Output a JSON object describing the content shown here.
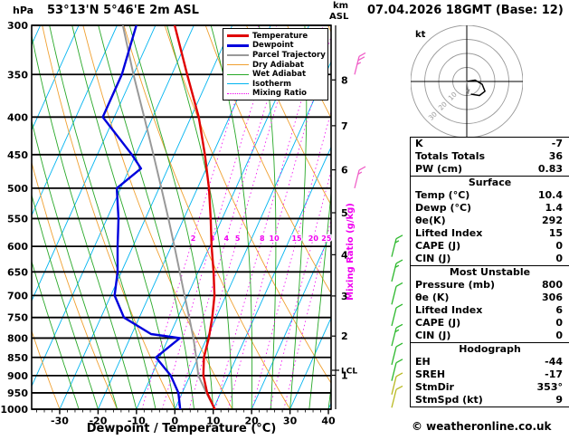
{
  "header": {
    "pressure_unit": "hPa",
    "station": "53°13'N 5°46'E 2m ASL",
    "run": "07.04.2026 18GMT (Base: 12)"
  },
  "axes": {
    "pressure_ticks": [
      300,
      350,
      400,
      450,
      500,
      550,
      600,
      650,
      700,
      750,
      800,
      850,
      900,
      950,
      1000
    ],
    "temp_ticks": [
      -30,
      -20,
      -10,
      0,
      10,
      20,
      30,
      40
    ],
    "xlabel": "Dewpoint / Temperature (°C)",
    "right_axis_title_km": "km",
    "right_axis_title_asl": "ASL",
    "km_ticks": [
      8,
      7,
      6,
      5,
      4,
      3,
      2,
      1
    ],
    "lcl_label": "LCL",
    "mixing_ratio_axis_label": "Mixing Ratio (g/kg)"
  },
  "legend": [
    {
      "label": "Temperature",
      "color": "#e00000",
      "width": 3,
      "style": "solid"
    },
    {
      "label": "Dewpoint",
      "color": "#0000dd",
      "width": 3,
      "style": "solid"
    },
    {
      "label": "Parcel Trajectory",
      "color": "#999999",
      "width": 2,
      "style": "solid"
    },
    {
      "label": "Dry Adiabat",
      "color": "#f0a030",
      "width": 1,
      "style": "solid"
    },
    {
      "label": "Wet Adiabat",
      "color": "#28a828",
      "width": 1,
      "style": "solid"
    },
    {
      "label": "Isotherm",
      "color": "#00b4f0",
      "width": 1,
      "style": "solid"
    },
    {
      "label": "Mixing Ratio",
      "color": "#f000f0",
      "width": 1,
      "style": "dotted"
    }
  ],
  "colors": {
    "temperature": "#e00000",
    "dewpoint": "#0000dd",
    "parcel": "#999999",
    "dry_adiabat": "#f0a030",
    "wet_adiabat": "#28a828",
    "isotherm": "#00b4f0",
    "mixing_ratio": "#f000f0",
    "grid": "#000000",
    "barb_pink": "#f060c8",
    "barb_green": "#2db82d",
    "barb_yellow": "#b8b820"
  },
  "chart_data": {
    "type": "line",
    "subtype": "skew-t log-p sounding",
    "title": "53°13'N 5°46'E 2m ASL",
    "xlabel": "Dewpoint / Temperature (°C)",
    "x_range_c": [
      -37.3,
      40.7
    ],
    "pressure_range_hpa": [
      1000,
      300
    ],
    "series": [
      {
        "name": "Temperature",
        "color": "#e00000",
        "width": 2.4,
        "points": [
          [
            1000,
            10.4
          ],
          [
            950,
            6.5
          ],
          [
            900,
            3.5
          ],
          [
            850,
            1.5
          ],
          [
            800,
            0.5
          ],
          [
            750,
            -1
          ],
          [
            700,
            -3
          ],
          [
            650,
            -6
          ],
          [
            600,
            -9.5
          ],
          [
            550,
            -13
          ],
          [
            500,
            -17
          ],
          [
            450,
            -22
          ],
          [
            400,
            -28
          ],
          [
            350,
            -36
          ],
          [
            300,
            -45
          ]
        ]
      },
      {
        "name": "Dewpoint",
        "color": "#0000dd",
        "width": 2.4,
        "points": [
          [
            1000,
            1.4
          ],
          [
            950,
            -1
          ],
          [
            900,
            -5
          ],
          [
            850,
            -11
          ],
          [
            800,
            -7
          ],
          [
            790,
            -15
          ],
          [
            750,
            -24
          ],
          [
            700,
            -29
          ],
          [
            650,
            -31
          ],
          [
            600,
            -34
          ],
          [
            550,
            -37
          ],
          [
            500,
            -41
          ],
          [
            470,
            -37
          ],
          [
            450,
            -41
          ],
          [
            400,
            -53
          ],
          [
            350,
            -53
          ],
          [
            300,
            -55
          ]
        ]
      },
      {
        "name": "Parcel Trajectory",
        "color": "#999999",
        "width": 2,
        "points": [
          [
            1000,
            10.4
          ],
          [
            950,
            6.3
          ],
          [
            900,
            2.2
          ],
          [
            850,
            -0.5
          ],
          [
            800,
            -3.5
          ],
          [
            750,
            -7
          ],
          [
            700,
            -10.8
          ],
          [
            650,
            -14.8
          ],
          [
            600,
            -19.2
          ],
          [
            550,
            -24
          ],
          [
            500,
            -29.4
          ],
          [
            450,
            -35.4
          ],
          [
            400,
            -42.2
          ],
          [
            350,
            -50
          ],
          [
            300,
            -58.5
          ]
        ]
      }
    ],
    "mixing_ratio_lines_gkg": [
      2,
      3,
      4,
      5,
      8,
      10,
      15,
      20,
      25
    ],
    "mixing_ratio_label_pressure_hpa": 585,
    "lcl_pressure_hpa": 885,
    "km_asl_marks": {
      "1": 899,
      "2": 795,
      "3": 701,
      "4": 616,
      "5": 540,
      "6": 472,
      "7": 411,
      "8": 356
    },
    "background": {
      "isotherm_step_c": 10,
      "dry_adiabats_c": [
        -45,
        -30,
        -15,
        0,
        15,
        30,
        45,
        60,
        75,
        90,
        105,
        120,
        135
      ],
      "wet_adiabats_c": [
        -25,
        -20,
        -15,
        -10,
        -5,
        0,
        5,
        10,
        15,
        20,
        25,
        30,
        35,
        40
      ]
    }
  },
  "wind_barbs": [
    {
      "p": 350,
      "x": 392,
      "color": "#f060c8",
      "ticks": 3
    },
    {
      "p": 500,
      "x": 392,
      "color": "#f060c8",
      "ticks": 2
    },
    {
      "p": 620,
      "x": 433,
      "color": "#2db82d",
      "ticks": 2
    },
    {
      "p": 670,
      "x": 433,
      "color": "#2db82d",
      "ticks": 2
    },
    {
      "p": 720,
      "x": 433,
      "color": "#2db82d",
      "ticks": 1
    },
    {
      "p": 770,
      "x": 433,
      "color": "#2db82d",
      "ticks": 1
    },
    {
      "p": 820,
      "x": 433,
      "color": "#2db82d",
      "ticks": 2
    },
    {
      "p": 870,
      "x": 433,
      "color": "#2db82d",
      "ticks": 1
    },
    {
      "p": 915,
      "x": 433,
      "color": "#2db82d",
      "ticks": 1
    },
    {
      "p": 955,
      "x": 433,
      "color": "#b8b820",
      "ticks": 1
    },
    {
      "p": 995,
      "x": 433,
      "color": "#b8b820",
      "ticks": 1
    }
  ],
  "hodograph": {
    "unit_label": "kt",
    "ring_labels": [
      "10",
      "20",
      "30"
    ],
    "ring_radii_kt": [
      10,
      20,
      30,
      40
    ],
    "trace_kt": [
      [
        0,
        0
      ],
      [
        6,
        1
      ],
      [
        11,
        -2
      ],
      [
        13,
        -7
      ],
      [
        9,
        -10
      ],
      [
        3,
        -9
      ]
    ],
    "storm_vector_kt": [
      1.1,
      -8.9
    ]
  },
  "indices": {
    "sections": [
      {
        "title": null,
        "rows": [
          [
            "K",
            "-7"
          ],
          [
            "Totals Totals",
            "36"
          ],
          [
            "PW (cm)",
            "0.83"
          ]
        ]
      },
      {
        "title": "Surface",
        "rows": [
          [
            "Temp (°C)",
            "10.4"
          ],
          [
            "Dewp (°C)",
            "1.4"
          ],
          [
            "θe(K)",
            "292"
          ],
          [
            "Lifted Index",
            "15"
          ],
          [
            "CAPE (J)",
            "0"
          ],
          [
            "CIN (J)",
            "0"
          ]
        ]
      },
      {
        "title": "Most Unstable",
        "rows": [
          [
            "Pressure (mb)",
            "800"
          ],
          [
            "θe (K)",
            "306"
          ],
          [
            "Lifted Index",
            "6"
          ],
          [
            "CAPE (J)",
            "0"
          ],
          [
            "CIN (J)",
            "0"
          ]
        ]
      },
      {
        "title": "Hodograph",
        "rows": [
          [
            "EH",
            "-44"
          ],
          [
            "SREH",
            "-17"
          ],
          [
            "StmDir",
            "353°"
          ],
          [
            "StmSpd (kt)",
            "9"
          ]
        ]
      }
    ]
  },
  "footer": {
    "copyright": "© weatheronline.co.uk"
  }
}
